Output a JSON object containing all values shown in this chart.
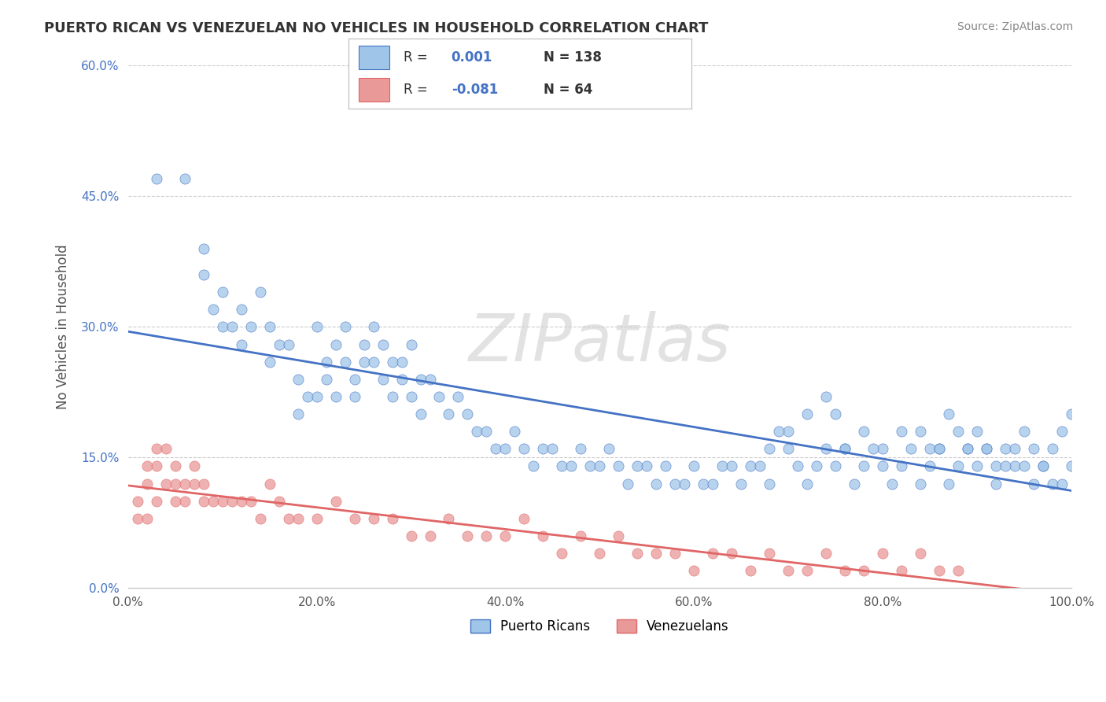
{
  "title": "PUERTO RICAN VS VENEZUELAN NO VEHICLES IN HOUSEHOLD CORRELATION CHART",
  "source": "Source: ZipAtlas.com",
  "ylabel": "No Vehicles in Household",
  "xlim": [
    0,
    100
  ],
  "ylim": [
    0,
    60
  ],
  "xticks": [
    0,
    20,
    40,
    60,
    80,
    100
  ],
  "yticks": [
    0,
    15,
    30,
    45,
    60
  ],
  "xtick_labels": [
    "0.0%",
    "20.0%",
    "40.0%",
    "60.0%",
    "80.0%",
    "100.0%"
  ],
  "ytick_labels": [
    "0.0%",
    "15.0%",
    "30.0%",
    "45.0%",
    "60.0%"
  ],
  "pr_R": 0.001,
  "pr_N": 138,
  "ven_R": -0.081,
  "ven_N": 64,
  "blue_color": "#9fc5e8",
  "pink_color": "#ea9999",
  "blue_line_color": "#4472c4",
  "pink_line_color": "#e06666",
  "watermark": "ZIPatlas",
  "pr_scatter_x": [
    3,
    6,
    8,
    8,
    9,
    10,
    10,
    11,
    12,
    12,
    13,
    14,
    15,
    15,
    16,
    17,
    18,
    18,
    19,
    20,
    20,
    21,
    21,
    22,
    22,
    23,
    23,
    24,
    24,
    25,
    25,
    26,
    26,
    27,
    27,
    28,
    28,
    29,
    29,
    30,
    30,
    31,
    31,
    32,
    33,
    34,
    35,
    36,
    37,
    38,
    39,
    40,
    41,
    42,
    43,
    44,
    45,
    46,
    47,
    48,
    49,
    50,
    51,
    52,
    53,
    54,
    55,
    56,
    57,
    58,
    59,
    60,
    61,
    62,
    63,
    64,
    65,
    66,
    67,
    68,
    70,
    72,
    74,
    75,
    76,
    78,
    80,
    82,
    84,
    85,
    86,
    87,
    88,
    89,
    90,
    91,
    92,
    93,
    94,
    95,
    96,
    97,
    98,
    99,
    100,
    100,
    99,
    98,
    97,
    96,
    95,
    94,
    93,
    92,
    91,
    90,
    89,
    88,
    87,
    86,
    85,
    84,
    83,
    82,
    81,
    80,
    79,
    78,
    77,
    76,
    75,
    74,
    73,
    72,
    71,
    70,
    69,
    68
  ],
  "pr_scatter_y": [
    47,
    47,
    39,
    36,
    32,
    34,
    30,
    30,
    32,
    28,
    30,
    34,
    30,
    26,
    28,
    28,
    20,
    24,
    22,
    30,
    22,
    26,
    24,
    28,
    22,
    30,
    26,
    24,
    22,
    28,
    26,
    30,
    26,
    28,
    24,
    26,
    22,
    26,
    24,
    28,
    22,
    24,
    20,
    24,
    22,
    20,
    22,
    20,
    18,
    18,
    16,
    16,
    18,
    16,
    14,
    16,
    16,
    14,
    14,
    16,
    14,
    14,
    16,
    14,
    12,
    14,
    14,
    12,
    14,
    12,
    12,
    14,
    12,
    12,
    14,
    14,
    12,
    14,
    14,
    12,
    18,
    20,
    22,
    20,
    16,
    18,
    16,
    18,
    18,
    16,
    16,
    20,
    18,
    16,
    18,
    16,
    14,
    16,
    14,
    14,
    16,
    14,
    12,
    12,
    14,
    20,
    18,
    16,
    14,
    12,
    18,
    16,
    14,
    12,
    16,
    14,
    16,
    14,
    12,
    16,
    14,
    12,
    16,
    14,
    12,
    14,
    16,
    14,
    12,
    16,
    14,
    16,
    14,
    12,
    14,
    16,
    18,
    16
  ],
  "ven_scatter_x": [
    1,
    1,
    2,
    2,
    2,
    3,
    3,
    3,
    4,
    4,
    5,
    5,
    5,
    6,
    6,
    7,
    7,
    8,
    8,
    9,
    10,
    11,
    12,
    13,
    14,
    15,
    16,
    17,
    18,
    20,
    22,
    24,
    26,
    28,
    30,
    32,
    34,
    36,
    38,
    40,
    42,
    44,
    46,
    48,
    50,
    52,
    54,
    56,
    58,
    60,
    62,
    64,
    66,
    68,
    70,
    72,
    74,
    76,
    78,
    80,
    82,
    84,
    86,
    88
  ],
  "ven_scatter_y": [
    8,
    10,
    8,
    12,
    14,
    10,
    14,
    16,
    12,
    16,
    12,
    14,
    10,
    10,
    12,
    14,
    12,
    10,
    12,
    10,
    10,
    10,
    10,
    10,
    8,
    12,
    10,
    8,
    8,
    8,
    10,
    8,
    8,
    8,
    6,
    6,
    8,
    6,
    6,
    6,
    8,
    6,
    4,
    6,
    4,
    6,
    4,
    4,
    4,
    2,
    4,
    4,
    2,
    4,
    2,
    2,
    4,
    2,
    2,
    4,
    2,
    4,
    2,
    2
  ]
}
